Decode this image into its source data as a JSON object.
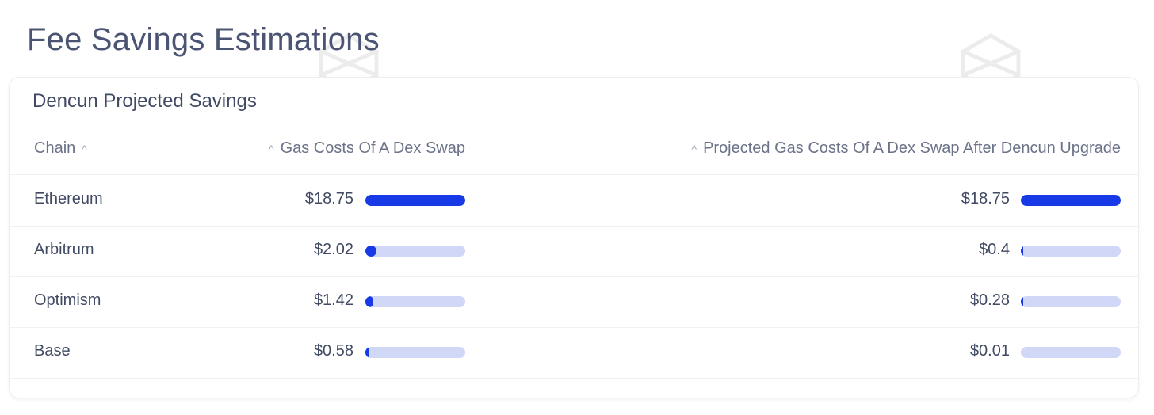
{
  "page": {
    "title": "Fee Savings Estimations"
  },
  "card": {
    "title": "Dencun Projected Savings",
    "columns": {
      "chain": "Chain",
      "gas": "Gas Costs Of A Dex Swap",
      "projected": "Projected Gas Costs Of A Dex Swap After Dencun Upgrade"
    },
    "rows": [
      {
        "chain": "Ethereum",
        "gas_label": "$18.75",
        "gas": 18.75,
        "proj_label": "$18.75",
        "proj": 18.75
      },
      {
        "chain": "Arbitrum",
        "gas_label": "$2.02",
        "gas": 2.02,
        "proj_label": "$0.4",
        "proj": 0.4
      },
      {
        "chain": "Optimism",
        "gas_label": "$1.42",
        "gas": 1.42,
        "proj_label": "$0.28",
        "proj": 0.28
      },
      {
        "chain": "Base",
        "gas_label": "$0.58",
        "gas": 0.58,
        "proj_label": "$0.01",
        "proj": 0.01
      }
    ]
  },
  "colors": {
    "bar_fill": "#1739e6",
    "bar_track": "#d1d8f7"
  },
  "icons": {
    "sort": "caret-up-icon",
    "watermark": "logo-watermark-icon"
  }
}
